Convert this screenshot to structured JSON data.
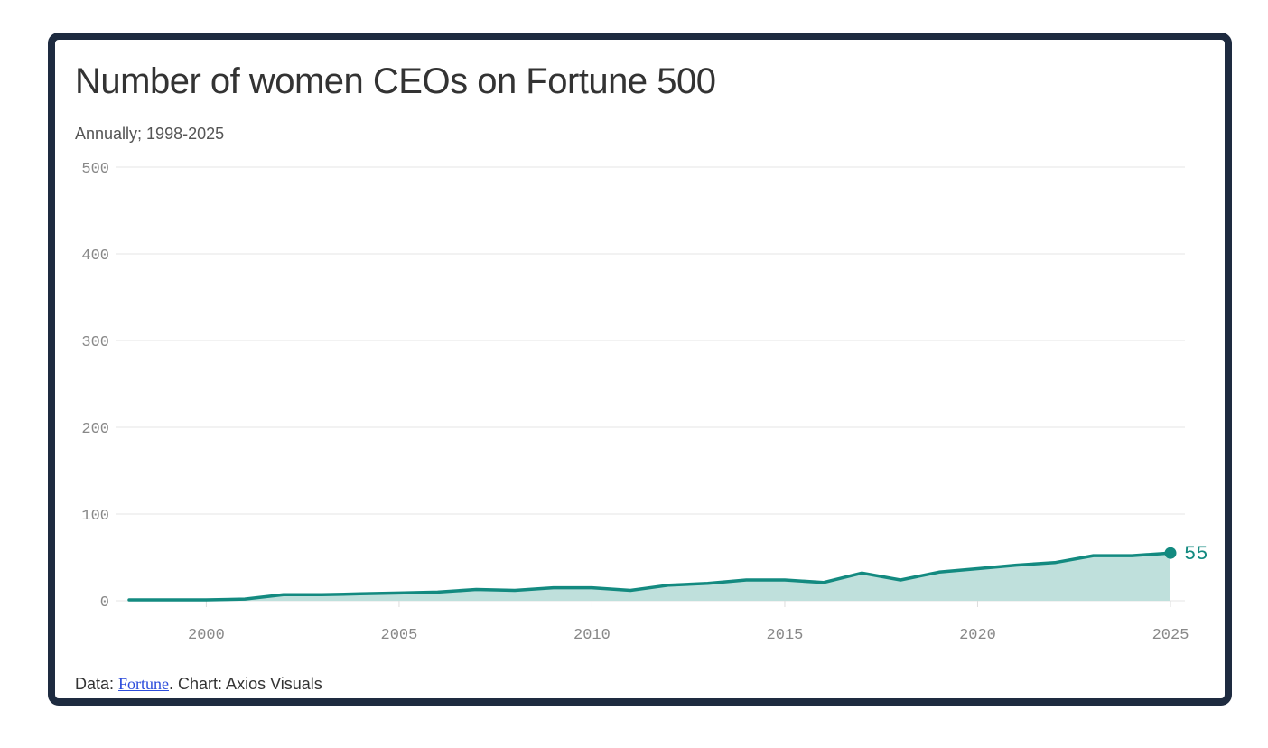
{
  "chart_data": {
    "type": "area",
    "title": "Number of women CEOs on Fortune 500",
    "subtitle": "Annually; 1998-2025",
    "x": [
      1998,
      1999,
      2000,
      2001,
      2002,
      2003,
      2004,
      2005,
      2006,
      2007,
      2008,
      2009,
      2010,
      2011,
      2012,
      2013,
      2014,
      2015,
      2016,
      2017,
      2018,
      2019,
      2020,
      2021,
      2022,
      2023,
      2024,
      2025
    ],
    "values": [
      1,
      1,
      1,
      2,
      7,
      7,
      8,
      9,
      10,
      13,
      12,
      15,
      15,
      12,
      18,
      20,
      24,
      24,
      21,
      32,
      24,
      33,
      37,
      41,
      44,
      52,
      52,
      55
    ],
    "xticks": [
      "2000",
      "2005",
      "2010",
      "2015",
      "2020",
      "2025"
    ],
    "yticks": [
      "500",
      "400",
      "300",
      "200",
      "100",
      "0"
    ],
    "ylim": [
      0,
      500
    ],
    "xlim": [
      1998,
      2025
    ],
    "grid": true,
    "end_label": "55",
    "line_color": "#138a80",
    "fill_color": "#bfe0dc"
  },
  "footer": {
    "prefix": "Data: ",
    "source_link": "Fortune",
    "suffix": ". Chart: Axios Visuals"
  }
}
